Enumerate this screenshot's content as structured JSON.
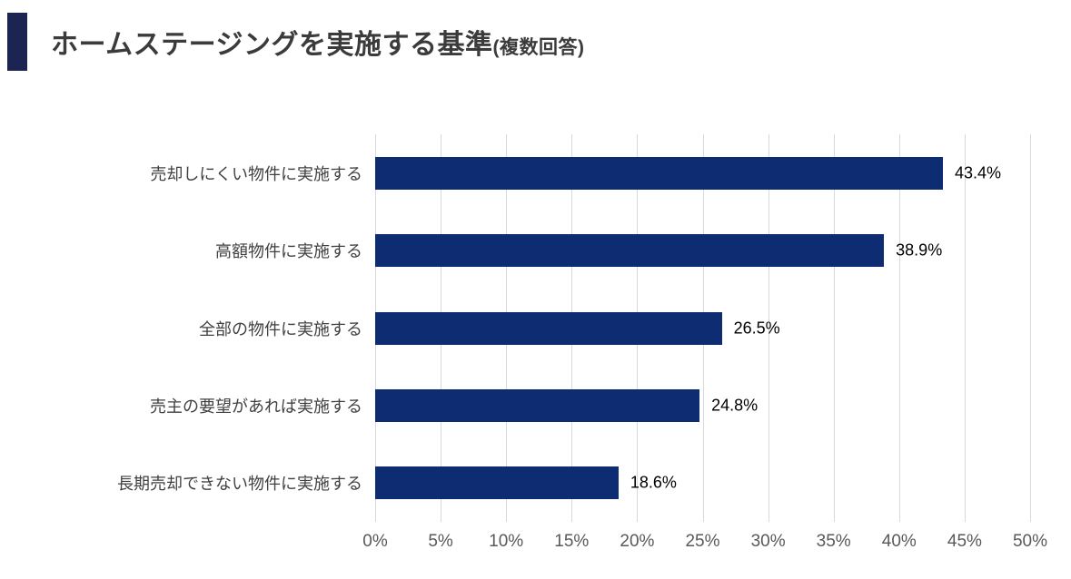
{
  "title": {
    "text": "ホームステージングを実施する基準",
    "suffix": "(複数回答)"
  },
  "colors": {
    "bar": "#0e2c72",
    "title_marker": "#1c2451",
    "gridline": "#d9d9d9",
    "axis_text": "#595959",
    "category_text": "#404040",
    "value_text": "#000000"
  },
  "chart_data": {
    "type": "bar",
    "orientation": "horizontal",
    "title": "ホームステージングを実施する基準(複数回答)",
    "categories": [
      "売却しにくい物件に実施する",
      "高額物件に実施する",
      "全部の物件に実施する",
      "売主の要望があれば実施する",
      "長期売却できない物件に実施する"
    ],
    "values": [
      43.4,
      38.9,
      26.5,
      24.8,
      18.6
    ],
    "value_labels": [
      "43.4%",
      "38.9%",
      "26.5%",
      "24.8%",
      "18.6%"
    ],
    "xlabel": "",
    "ylabel": "",
    "xlim": [
      0,
      50
    ],
    "x_ticks": [
      "0%",
      "5%",
      "10%",
      "15%",
      "20%",
      "25%",
      "30%",
      "35%",
      "40%",
      "45%",
      "50%"
    ],
    "grid": true,
    "legend": "none"
  }
}
